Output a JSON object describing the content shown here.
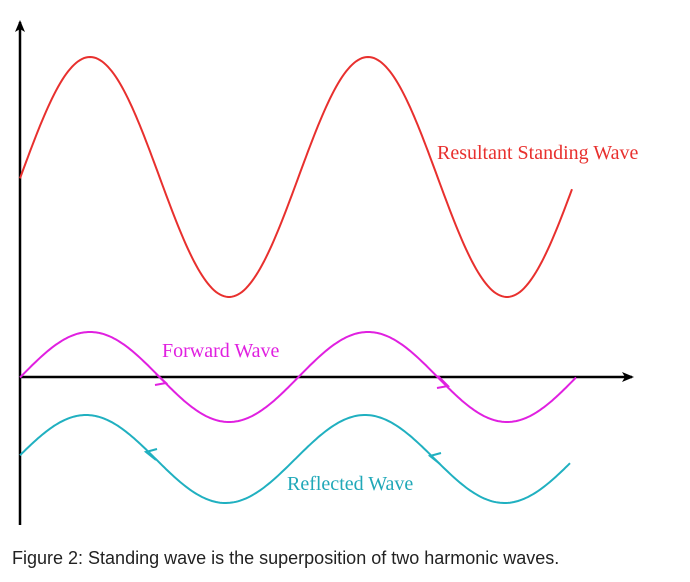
{
  "labels": {
    "resultant": "Resultant Standing Wave",
    "forward": "Forward Wave",
    "reflected": "Reflected Wave"
  },
  "caption": "Figure 2: Standing wave is the superposition of two harmonic waves."
}
